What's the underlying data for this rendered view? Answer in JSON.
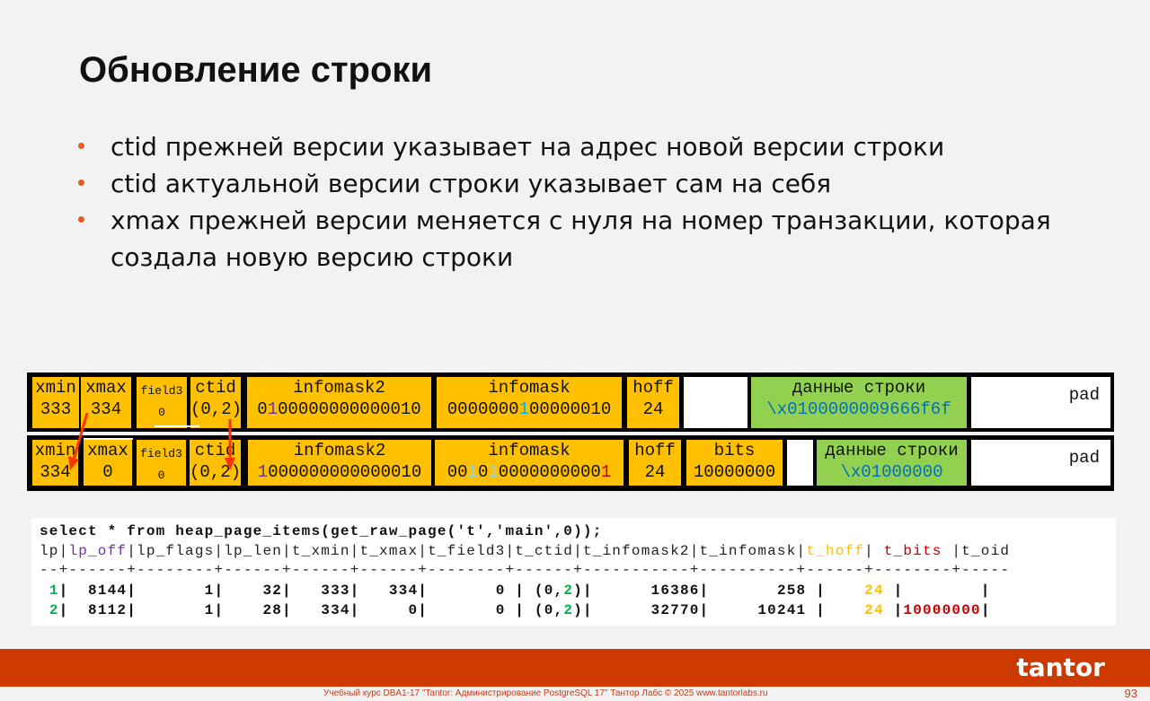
{
  "title": "Обновление строки",
  "bullets": [
    "ctid прежней версии указывает на адрес новой версии строки",
    "ctid актуальной версии строки указывает сам на себя",
    "xmax прежней версии меняется с нуля на номер транзакции, которая создала новую версию строки"
  ],
  "colors": {
    "accent": "#cc3a00",
    "cell": "#ffc000",
    "data": "#92d050",
    "purple": "#7030a0",
    "blue": "#00b0f0",
    "red": "#c00000",
    "green": "#00b050"
  },
  "tuple_old": {
    "xmin": {
      "label": "xmin",
      "value": "333"
    },
    "xmax": {
      "label": "xmax",
      "value": "334"
    },
    "field3": {
      "label": "field3",
      "value": "0"
    },
    "ctid": {
      "label": "ctid",
      "value": "(0,2)"
    },
    "infomask2": {
      "label": "infomask2",
      "value": [
        {
          "t": "0",
          "c": ""
        },
        {
          "t": "1",
          "c": "#7030a0"
        },
        {
          "t": "00000000000010",
          "c": ""
        }
      ]
    },
    "infomask": {
      "label": "infomask",
      "value": [
        {
          "t": "0000000",
          "c": ""
        },
        {
          "t": "1",
          "c": "#00b0f0"
        },
        {
          "t": "00000010",
          "c": ""
        }
      ]
    },
    "hoff": {
      "label": "hoff",
      "value": "24"
    },
    "data": {
      "label": "данные строки",
      "value": "\\x0100000009666f6f"
    },
    "pad": {
      "label": "pad"
    }
  },
  "tuple_new": {
    "xmin": {
      "label": "xmin",
      "value": "334"
    },
    "xmax": {
      "label": "xmax",
      "value": "0"
    },
    "field3": {
      "label": "field3",
      "value": "0"
    },
    "ctid": {
      "label": "ctid",
      "value": "(0,2)"
    },
    "infomask2": {
      "label": "infomask2",
      "value": [
        {
          "t": "1",
          "c": "#7030a0"
        },
        {
          "t": "000000000000010",
          "c": ""
        }
      ]
    },
    "infomask": {
      "label": "infomask",
      "value": [
        {
          "t": "00",
          "c": ""
        },
        {
          "t": "1",
          "c": "#8fd0f0"
        },
        {
          "t": "0",
          "c": ""
        },
        {
          "t": "1",
          "c": "#8fd0f0"
        },
        {
          "t": "0000000000",
          "c": ""
        },
        {
          "t": "1",
          "c": "#c00000"
        }
      ]
    },
    "hoff": {
      "label": "hoff",
      "value": "24"
    },
    "bits": {
      "label": "bits",
      "value": "10000000"
    },
    "data": {
      "label": "данные строки",
      "value": "\\x01000000"
    },
    "pad": {
      "label": "pad"
    }
  },
  "query": {
    "command": "select * from heap_page_items(get_raw_page('t','main',0));",
    "header": [
      {
        "t": "lp|",
        "c": ""
      },
      {
        "t": "lp_off",
        "c": "#7030a0"
      },
      {
        "t": "|lp_flags|lp_len|t_xmin|t_xmax|t_field3|t_ctid|t_infomask2|t_infomask|",
        "c": ""
      },
      {
        "t": "t_hoff",
        "c": "#ffc000"
      },
      {
        "t": "| ",
        "c": ""
      },
      {
        "t": "t_bits",
        "c": "#c00000"
      },
      {
        "t": " |t_oid",
        "c": ""
      }
    ],
    "separator": "--+------+--------+------+------+------+--------+------+-----------+----------+------+--------+-----",
    "rows": [
      [
        {
          "t": " ",
          "c": ""
        },
        {
          "t": "1",
          "c": "#00b050"
        },
        {
          "t": "|  8144|       1|    32|   333|   334|       0 | (0,",
          "c": ""
        },
        {
          "t": "2",
          "c": "#00b050"
        },
        {
          "t": ")|      16386|       258 |    ",
          "c": ""
        },
        {
          "t": "24",
          "c": "#ffc000"
        },
        {
          "t": " |        |",
          "c": ""
        }
      ],
      [
        {
          "t": " ",
          "c": ""
        },
        {
          "t": "2",
          "c": "#00b050"
        },
        {
          "t": "|  8112|       1|    28|   334|     0|       0 | (0,",
          "c": ""
        },
        {
          "t": "2",
          "c": "#00b050"
        },
        {
          "t": ")|      32770|     10241 |    ",
          "c": ""
        },
        {
          "t": "24",
          "c": "#ffc000"
        },
        {
          "t": " |",
          "c": ""
        },
        {
          "t": "10000000",
          "c": "#c00000"
        },
        {
          "t": "|",
          "c": ""
        }
      ]
    ]
  },
  "footer": {
    "logo": "tantor",
    "text": "Учебный курс DBA1-17 \"Tantor: Администрирование PostgreSQL 17\" Тантор Лабс © 2025 www.tantorlabs.ru",
    "page": "93"
  }
}
